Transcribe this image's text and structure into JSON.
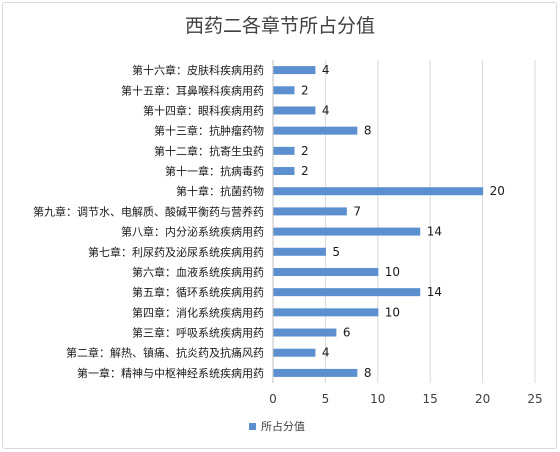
{
  "chart_data": {
    "type": "bar",
    "orientation": "horizontal",
    "title": "西药二各章节所占分值",
    "categories": [
      "第十六章：皮肤科疾病用药",
      "第十五章：耳鼻喉科疾病用药",
      "第十四章：眼科疾病用药",
      "第十三章：抗肿瘤药物",
      "第十二章：抗寄生虫药",
      "第十一章：抗病毒药",
      "第十章：抗菌药物",
      "第九章：调节水、电解质、酸碱平衡药与营养药",
      "第八章：内分泌系统疾病用药",
      "第七章：利尿药及泌尿系统疾病用药",
      "第六章：血液系统疾病用药",
      "第五章：循环系统疾病用药",
      "第四章：消化系统疾病用药",
      "第三章：呼吸系统疾病用药",
      "第二章：解热、镇痛、抗炎药及抗痛风药",
      "第一章：精神与中枢神经系统疾病用药"
    ],
    "series": [
      {
        "name": "所占分值",
        "color": "#5b8fd0",
        "values": [
          4,
          2,
          4,
          8,
          2,
          2,
          20,
          7,
          14,
          5,
          10,
          14,
          10,
          6,
          4,
          8
        ]
      }
    ],
    "xlim": [
      0,
      25
    ],
    "xticks": [
      0,
      5,
      10,
      15,
      20,
      25
    ],
    "data_labels": true,
    "grid": true,
    "legend": "bottom"
  }
}
